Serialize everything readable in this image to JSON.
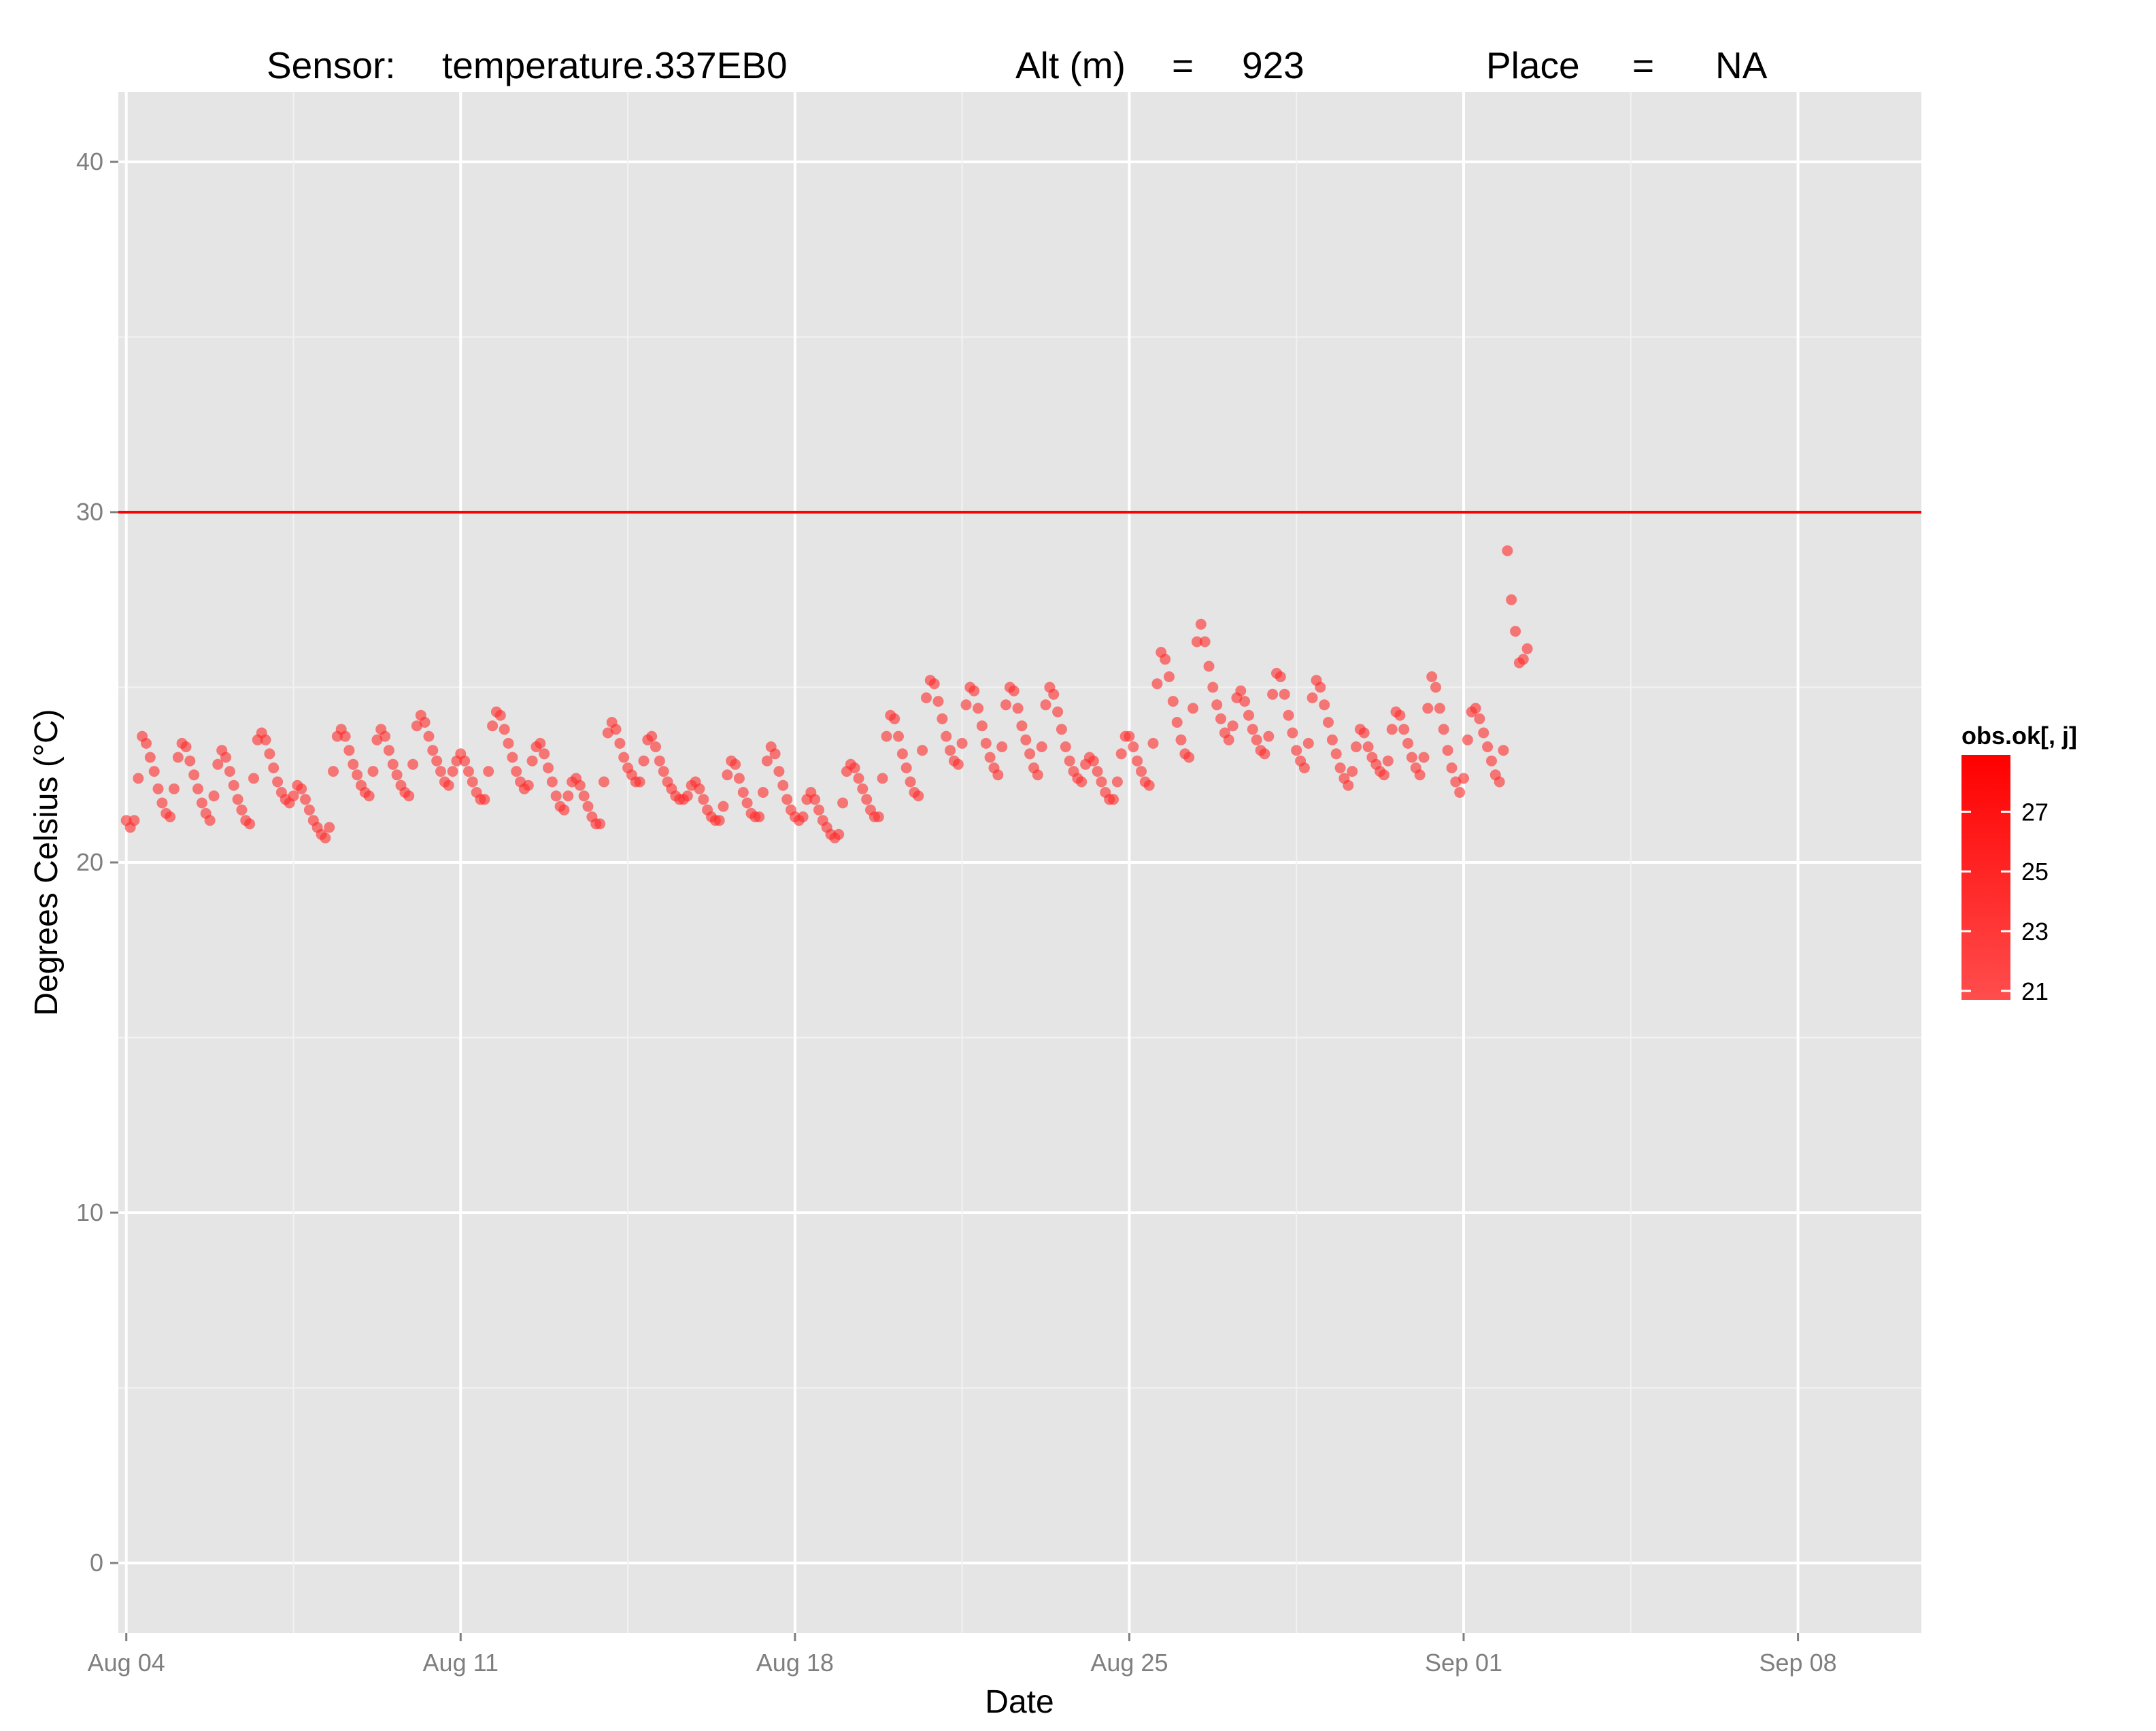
{
  "chart_data": {
    "type": "scatter",
    "title_parts": {
      "sensor_label": "Sensor:",
      "sensor_value": "temperature.337EB0",
      "alt_label": "Alt (m)",
      "alt_eq": "=",
      "alt_value": "923",
      "place_label": "Place",
      "place_eq": "=",
      "place_value": "NA"
    },
    "xlabel": "Date",
    "ylabel": "Degrees Celsius (°C)",
    "xlim": [
      "2015-08-03T20:00",
      "2015-09-10T14:00"
    ],
    "ylim": [
      -2,
      42
    ],
    "x_ticks": [
      {
        "date": "2015-08-04",
        "label": "Aug 04"
      },
      {
        "date": "2015-08-11",
        "label": "Aug 11"
      },
      {
        "date": "2015-08-18",
        "label": "Aug 18"
      },
      {
        "date": "2015-08-25",
        "label": "Aug 25"
      },
      {
        "date": "2015-09-01",
        "label": "Sep 01"
      },
      {
        "date": "2015-09-08",
        "label": "Sep 08"
      }
    ],
    "y_ticks": [
      0,
      10,
      20,
      30,
      40
    ],
    "y_minor_ticks": [
      5,
      15,
      25,
      35
    ],
    "threshold_line": {
      "y": 30,
      "color": "#ff0000"
    },
    "point_color": "#ff2a2a",
    "panel_color": "#e5e5e5",
    "grid": true,
    "legend": {
      "title": "obs.ok[, j]",
      "position": "right",
      "labels": [
        "27",
        "25",
        "23",
        "21"
      ],
      "color_high": "#ff0000",
      "color_low": "#ff4d4d",
      "range": [
        20.7,
        28.9
      ]
    },
    "series": [
      {
        "start": "2015-08-04T00:00",
        "interval_hours": 2,
        "values": [
          21.2,
          21.0,
          21.2,
          22.4,
          23.6,
          23.4,
          23.0,
          22.6,
          22.1,
          21.7,
          21.4,
          21.3,
          22.1,
          23.0,
          23.4,
          23.3,
          22.9,
          22.5,
          22.1,
          21.7,
          21.4,
          21.2,
          21.9,
          22.8,
          23.2,
          23.0,
          22.6,
          22.2,
          21.8,
          21.5,
          21.2,
          21.1,
          22.4,
          23.5,
          23.7,
          23.5,
          23.1,
          22.7,
          22.3,
          22.0,
          21.8,
          21.7,
          21.9,
          22.2,
          22.1,
          21.8,
          21.5,
          21.2,
          21.0,
          20.8,
          20.7,
          21.0,
          22.6,
          23.6,
          23.8,
          23.6,
          23.2,
          22.8,
          22.5,
          22.2,
          22.0,
          21.9,
          22.6,
          23.5,
          23.8,
          23.6,
          23.2,
          22.8,
          22.5,
          22.2,
          22.0,
          21.9,
          22.8,
          23.9,
          24.2,
          24.0,
          23.6,
          23.2,
          22.9,
          22.6,
          22.3,
          22.2,
          22.6,
          22.9,
          23.1,
          22.9,
          22.6,
          22.3,
          22.0,
          21.8,
          21.8,
          22.6,
          23.9,
          24.3,
          24.2,
          23.8,
          23.4,
          23.0,
          22.6,
          22.3,
          22.1,
          22.2,
          22.9,
          23.3,
          23.4,
          23.1,
          22.7,
          22.3,
          21.9,
          21.6,
          21.5,
          21.9,
          22.3,
          22.4,
          22.2,
          21.9,
          21.6,
          21.3,
          21.1,
          21.1,
          22.3,
          23.7,
          24.0,
          23.8,
          23.4,
          23.0,
          22.7,
          22.5,
          22.3,
          22.3,
          22.9,
          23.5,
          23.6,
          23.3,
          22.9,
          22.6,
          22.3,
          22.1,
          21.9,
          21.8,
          21.8,
          21.9,
          22.2,
          22.3,
          22.1,
          21.8,
          21.5,
          21.3,
          21.2,
          21.2,
          21.6,
          22.5,
          22.9,
          22.8,
          22.4,
          22.0,
          21.7,
          21.4,
          21.3,
          21.3,
          22.0,
          22.9,
          23.3,
          23.1,
          22.6,
          22.2,
          21.8,
          21.5,
          21.3,
          21.2,
          21.3,
          21.8,
          22.0,
          21.8,
          21.5,
          21.2,
          21.0,
          20.8,
          20.7,
          20.8,
          21.7,
          22.6,
          22.8,
          22.7,
          22.4,
          22.1,
          21.8,
          21.5,
          21.3,
          21.3,
          22.4,
          23.6,
          24.2,
          24.1,
          23.6,
          23.1,
          22.7,
          22.3,
          22.0,
          21.9,
          23.2,
          24.7,
          25.2,
          25.1,
          24.6,
          24.1,
          23.6,
          23.2,
          22.9,
          22.8,
          23.4,
          24.5,
          25.0,
          24.9,
          24.4,
          23.9,
          23.4,
          23.0,
          22.7,
          22.5,
          23.3,
          24.5,
          25.0,
          24.9,
          24.4,
          23.9,
          23.5,
          23.1,
          22.7,
          22.5,
          23.3,
          24.5,
          25.0,
          24.8,
          24.3,
          23.8,
          23.3,
          22.9,
          22.6,
          22.4,
          22.3,
          22.8,
          23.0,
          22.9,
          22.6,
          22.3,
          22.0,
          21.8,
          21.8,
          22.3,
          23.1,
          23.6,
          23.6,
          23.3,
          22.9,
          22.6,
          22.3,
          22.2,
          23.4,
          25.1,
          26.0,
          25.8,
          25.3,
          24.6,
          24.0,
          23.5,
          23.1,
          23.0,
          24.4,
          26.3,
          26.8,
          26.3,
          25.6,
          25.0,
          24.5,
          24.1,
          23.7,
          23.5,
          23.9,
          24.7,
          24.9,
          24.6,
          24.2,
          23.8,
          23.5,
          23.2,
          23.1,
          23.6,
          24.8,
          25.4,
          25.3,
          24.8,
          24.2,
          23.7,
          23.2,
          22.9,
          22.7,
          23.4,
          24.7,
          25.2,
          25.0,
          24.5,
          24.0,
          23.5,
          23.1,
          22.7,
          22.4,
          22.2,
          22.6,
          23.3,
          23.8,
          23.7,
          23.3,
          23.0,
          22.8,
          22.6,
          22.5,
          22.9,
          23.8,
          24.3,
          24.2,
          23.8,
          23.4,
          23.0,
          22.7,
          22.5,
          23.0,
          24.4,
          25.3,
          25.0,
          24.4,
          23.8,
          23.2,
          22.7,
          22.3,
          22.0,
          22.4,
          23.5,
          24.3,
          24.4,
          24.1,
          23.7,
          23.3,
          22.9,
          22.5,
          22.3,
          23.2,
          28.9,
          27.5,
          26.6,
          25.7,
          25.8,
          26.1
        ]
      }
    ]
  }
}
